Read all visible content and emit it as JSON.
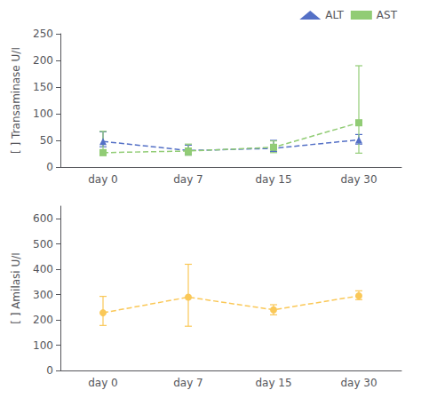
{
  "chart_data": [
    {
      "type": "line",
      "categories": [
        "day 0",
        "day 7",
        "day 15",
        "day 30"
      ],
      "ylabel": "[ ] Transaminase U/I",
      "ylim": [
        0,
        250
      ],
      "yticks": [
        0,
        50,
        100,
        150,
        200,
        250
      ],
      "grid": false,
      "legend": "upper right",
      "line_style": "dashed",
      "series": [
        {
          "name": "ALT",
          "marker": "triangle",
          "values": [
            48,
            31,
            35,
            51
          ],
          "yerr_low": [
            10,
            8,
            6,
            8
          ],
          "yerr_high": [
            18,
            10,
            15,
            10
          ]
        },
        {
          "name": "AST",
          "marker": "square",
          "values": [
            27,
            30,
            37,
            83
          ],
          "yerr_low": [
            5,
            8,
            10,
            57
          ],
          "yerr_high": [
            40,
            13,
            12,
            107
          ]
        }
      ]
    },
    {
      "type": "line",
      "categories": [
        "day 0",
        "day 7",
        "day 15",
        "day 30"
      ],
      "ylabel": "[ ] Amilasi U/I",
      "ylim": [
        0,
        650
      ],
      "yticks": [
        0,
        100,
        200,
        300,
        400,
        500,
        600
      ],
      "grid": false,
      "line_style": "dashed",
      "series": [
        {
          "marker": "circle",
          "values": [
            228,
            290,
            240,
            295
          ],
          "yerr_low": [
            50,
            115,
            20,
            15
          ],
          "yerr_high": [
            65,
            130,
            20,
            20
          ]
        }
      ]
    }
  ]
}
